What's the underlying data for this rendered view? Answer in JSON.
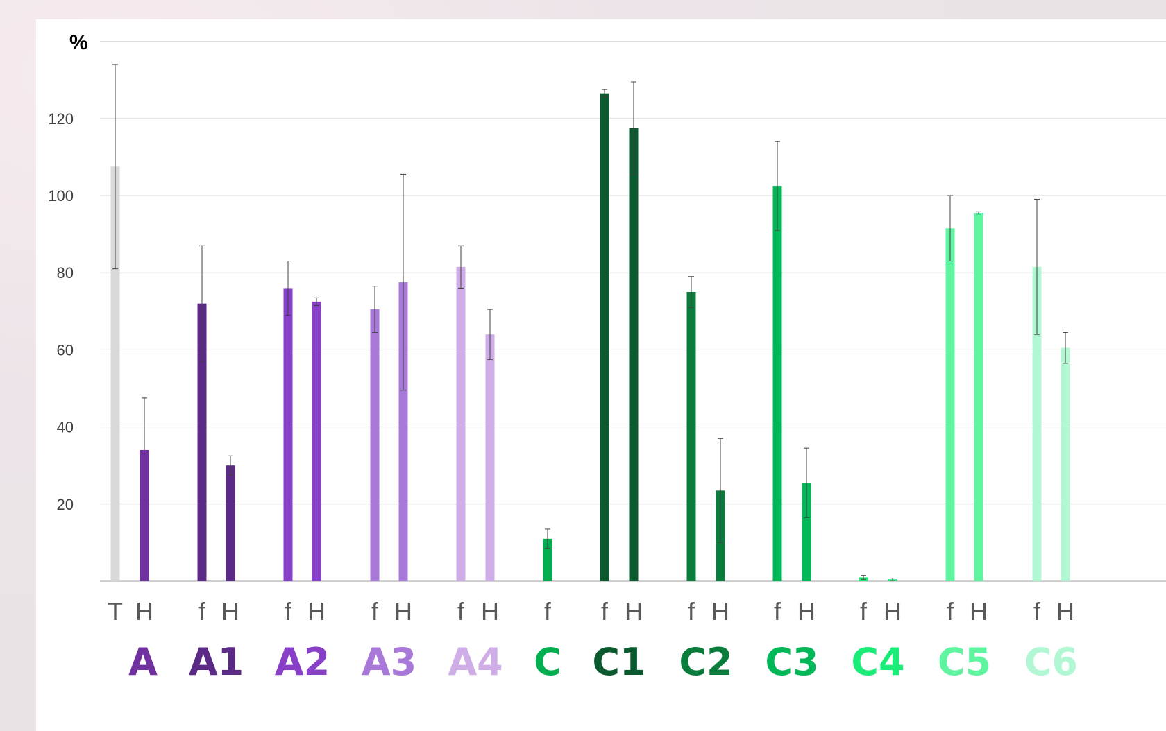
{
  "chart_data": {
    "type": "bar",
    "ylabel": "%",
    "ylim": [
      0,
      140
    ],
    "yticks": [
      20,
      40,
      60,
      80,
      100,
      120
    ],
    "grid": true,
    "error_bars": true,
    "groups": [
      {
        "name": "A",
        "color": "#7030a0",
        "bars": [
          {
            "label": "T",
            "value": 107.5,
            "err_low": 26.5,
            "err_high": 26.5,
            "color": "#d9d9d9"
          },
          {
            "label": "H",
            "value": 34,
            "err_low": 0,
            "err_high": 13.5
          }
        ]
      },
      {
        "name": "A1",
        "color": "#5b2a86",
        "bars": [
          {
            "label": "f",
            "value": 72,
            "err_low": 15,
            "err_high": 15
          },
          {
            "label": "H",
            "value": 30,
            "err_low": 2.5,
            "err_high": 2.5
          }
        ]
      },
      {
        "name": "A2",
        "color": "#8840c8",
        "bars": [
          {
            "label": "f",
            "value": 76,
            "err_low": 7,
            "err_high": 7
          },
          {
            "label": "H",
            "value": 72.5,
            "err_low": 1,
            "err_high": 1
          }
        ]
      },
      {
        "name": "A3",
        "color": "#a879d9",
        "bars": [
          {
            "label": "f",
            "value": 70.5,
            "err_low": 6,
            "err_high": 6
          },
          {
            "label": "H",
            "value": 77.5,
            "err_low": 28,
            "err_high": 28
          }
        ]
      },
      {
        "name": "A4",
        "color": "#cfaee8",
        "bars": [
          {
            "label": "f",
            "value": 81.5,
            "err_low": 5.5,
            "err_high": 5.5
          },
          {
            "label": "H",
            "value": 64,
            "err_low": 6.5,
            "err_high": 6.5
          }
        ]
      },
      {
        "name": "C",
        "color": "#00b050",
        "bars": [
          {
            "label": "f",
            "value": 11,
            "err_low": 2.5,
            "err_high": 2.5
          }
        ]
      },
      {
        "name": "C1",
        "color": "#0b5a2f",
        "bars": [
          {
            "label": "f",
            "value": 126.5,
            "err_low": 1,
            "err_high": 1
          },
          {
            "label": "H",
            "value": 117.5,
            "err_low": 12,
            "err_high": 12
          }
        ]
      },
      {
        "name": "C2",
        "color": "#0a7d3c",
        "bars": [
          {
            "label": "f",
            "value": 75,
            "err_low": 4,
            "err_high": 4
          },
          {
            "label": "H",
            "value": 23.5,
            "err_low": 13.5,
            "err_high": 13.5
          }
        ]
      },
      {
        "name": "C3",
        "color": "#00b858",
        "bars": [
          {
            "label": "f",
            "value": 102.5,
            "err_low": 11.5,
            "err_high": 11.5
          },
          {
            "label": "H",
            "value": 25.5,
            "err_low": 9,
            "err_high": 9
          }
        ]
      },
      {
        "name": "C4",
        "color": "#19ec77",
        "bars": [
          {
            "label": "f",
            "value": 1,
            "err_low": 0.5,
            "err_high": 0.5
          },
          {
            "label": "H",
            "value": 0.5,
            "err_low": 0.3,
            "err_high": 0.3
          }
        ]
      },
      {
        "name": "C5",
        "color": "#5ff4a0",
        "bars": [
          {
            "label": "f",
            "value": 91.5,
            "err_low": 8.5,
            "err_high": 8.5
          },
          {
            "label": "H",
            "value": 95.5,
            "err_low": 0.3,
            "err_high": 0.3
          }
        ]
      },
      {
        "name": "C6",
        "color": "#b2f7d4",
        "bars": [
          {
            "label": "f",
            "value": 81.5,
            "err_low": 17.5,
            "err_high": 17.5
          },
          {
            "label": "H",
            "value": 60.5,
            "err_low": 4,
            "err_high": 4
          }
        ]
      }
    ]
  }
}
